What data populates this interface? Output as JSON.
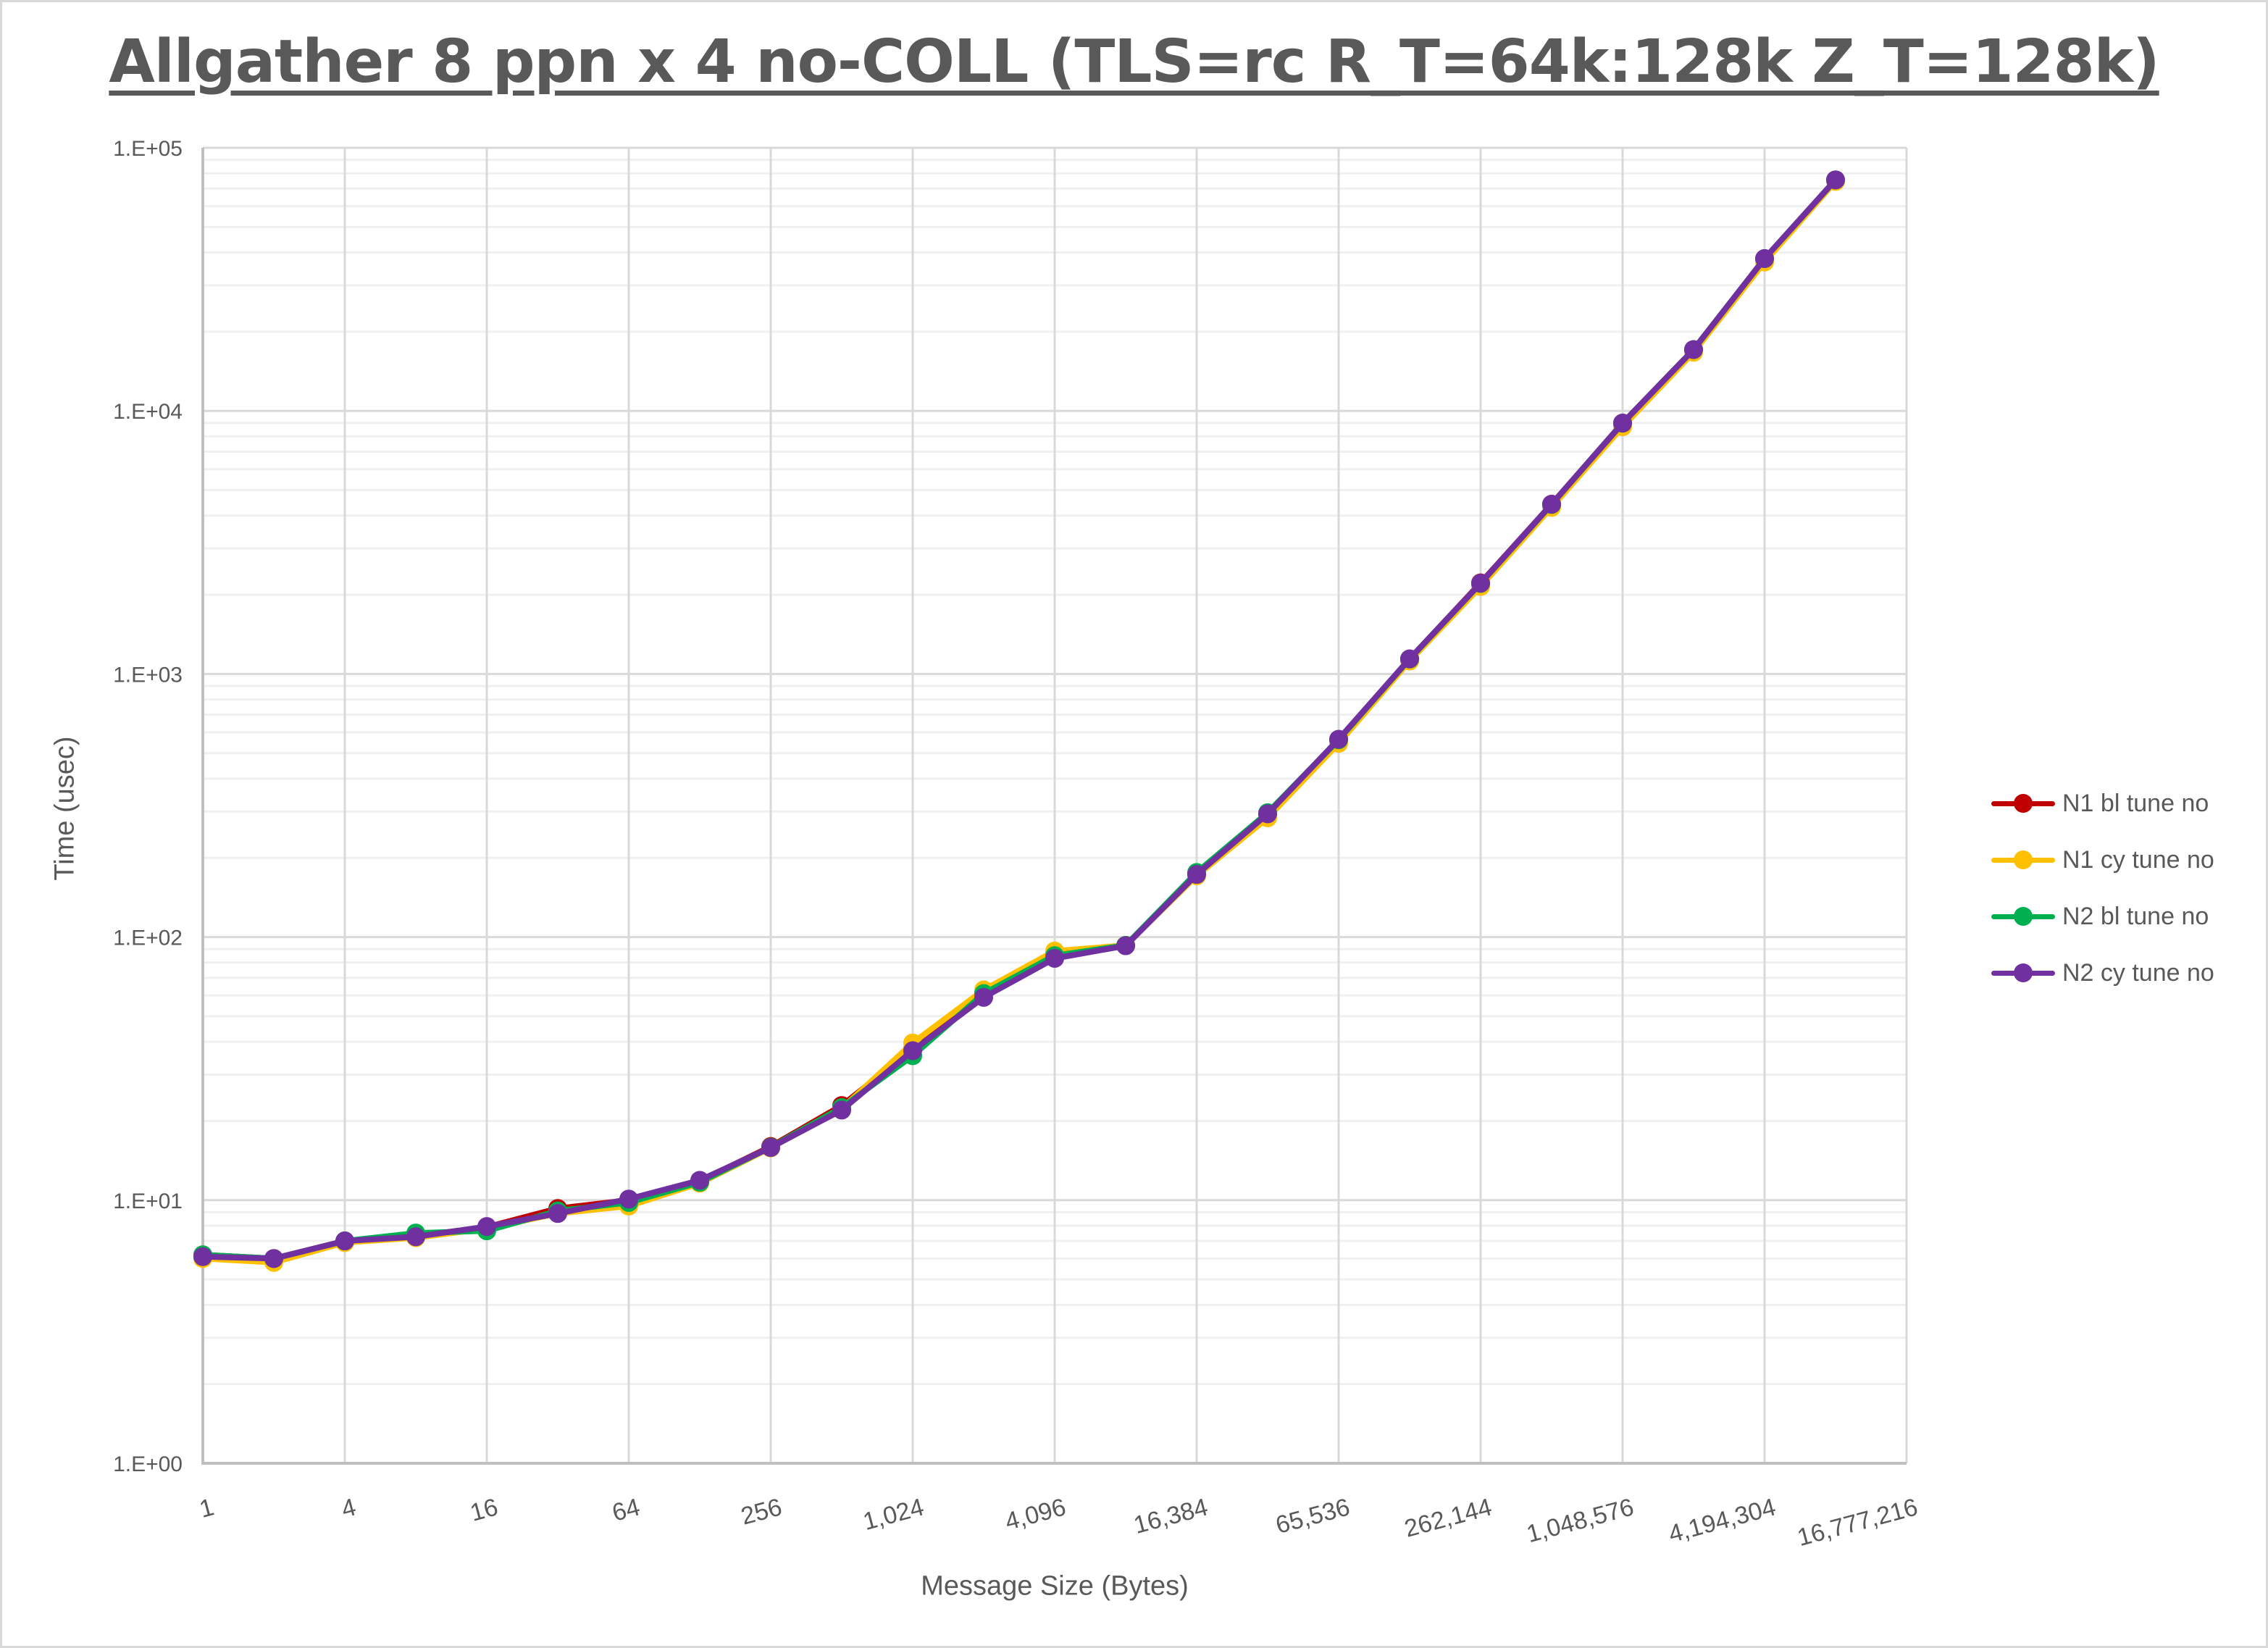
{
  "chart_data": {
    "type": "line",
    "title": "Allgather 8 ppn x 4 no-COLL (TLS=rc R_T=64k:128k Z_T=128k)",
    "xlabel": "Message Size (Bytes)",
    "ylabel": "Time (usec)",
    "xscale": "log2",
    "yscale": "log10",
    "xlim": [
      1,
      16777216
    ],
    "ylim": [
      1,
      100000
    ],
    "x_tick_labels": [
      "1",
      "4",
      "16",
      "64",
      "256",
      "1,024",
      "4,096",
      "16,384",
      "65,536",
      "262,144",
      "1,048,576",
      "4,194,304",
      "16,777,216"
    ],
    "x_tick_values": [
      1,
      4,
      16,
      64,
      256,
      1024,
      4096,
      16384,
      65536,
      262144,
      1048576,
      4194304,
      16777216
    ],
    "y_tick_labels": [
      "1.E+00",
      "1.E+01",
      "1.E+02",
      "1.E+03",
      "1.E+04",
      "1.E+05"
    ],
    "y_tick_values": [
      1,
      10,
      100,
      1000,
      10000,
      100000
    ],
    "grid": {
      "major": true,
      "minor_y": true
    },
    "legend_position": "right",
    "x": [
      1,
      2,
      4,
      8,
      16,
      32,
      64,
      128,
      256,
      512,
      1024,
      2048,
      4096,
      8192,
      16384,
      32768,
      65536,
      131072,
      262144,
      524288,
      1048576,
      2097152,
      4194304,
      8388608
    ],
    "series": [
      {
        "name": "N1 bl tune no",
        "color": "#C00000",
        "values": [
          6.2,
          6.0,
          7.0,
          7.3,
          7.9,
          9.3,
          10.0,
          11.8,
          16.0,
          22.9,
          37.5,
          62,
          86,
          93,
          174,
          293,
          560,
          1140,
          2220,
          4420,
          8990,
          17100,
          37900,
          75500
        ]
      },
      {
        "name": "N1 cy tune no",
        "color": "#FFC000",
        "values": [
          6.0,
          5.8,
          6.9,
          7.2,
          7.8,
          8.9,
          9.5,
          11.6,
          15.8,
          22.3,
          39.6,
          63,
          88.5,
          93,
          171,
          284,
          545,
          1120,
          2150,
          4300,
          8700,
          16700,
          36800,
          74500
        ]
      },
      {
        "name": "N2 bl tune no",
        "color": "#00B050",
        "values": [
          6.2,
          6.0,
          7.0,
          7.5,
          7.65,
          9.1,
          9.8,
          11.7,
          15.9,
          22.5,
          35.4,
          61,
          85,
          93,
          176,
          297,
          562,
          1140,
          2210,
          4410,
          8980,
          17100,
          37900,
          75500
        ]
      },
      {
        "name": "N2 cy tune no",
        "color": "#7030A0",
        "values": [
          6.1,
          6.0,
          7.0,
          7.26,
          7.94,
          8.9,
          10.1,
          11.9,
          15.85,
          22.0,
          37,
          59,
          83,
          92.7,
          173,
          294,
          565,
          1142,
          2213,
          4417,
          8980,
          17100,
          37900,
          75500
        ]
      }
    ]
  },
  "legend": {
    "items": [
      {
        "label": "N1 bl tune no",
        "color": "#C00000"
      },
      {
        "label": "N1 cy tune no",
        "color": "#FFC000"
      },
      {
        "label": "N2 bl tune no",
        "color": "#00B050"
      },
      {
        "label": "N2 cy tune no",
        "color": "#7030A0"
      }
    ]
  },
  "colors": {
    "text": "#595959",
    "major_grid": "#d9d9d9",
    "minor_grid": "#f0f0f0",
    "axis": "#bfbfbf",
    "frame": "#d9d9d9"
  }
}
